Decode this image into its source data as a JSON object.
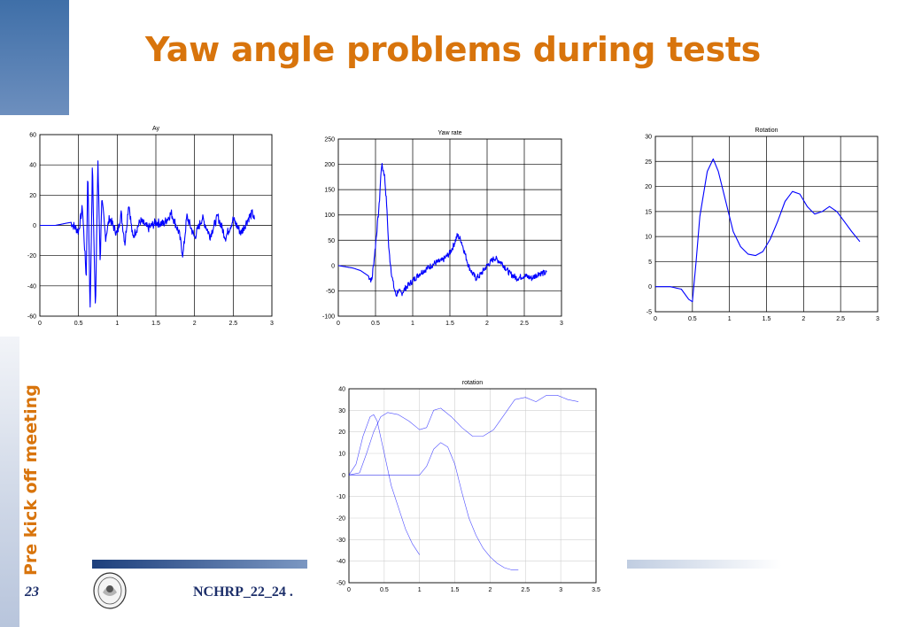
{
  "slide": {
    "title": "Yaw angle problems during tests",
    "side_text": "Pre kick off meeting",
    "page_number": "23",
    "footer_text": "NCHRP_22_24 ."
  },
  "colors": {
    "accent": "#d8740c",
    "navy": "#1d2f6a",
    "series": "#0000ff"
  },
  "icons": {
    "seal": "university-seal-icon"
  },
  "chart_data": [
    {
      "id": "ay",
      "type": "line",
      "title": "Ay",
      "xlabel": "",
      "ylabel": "",
      "xlim": [
        0,
        3
      ],
      "ylim": [
        -60,
        60
      ],
      "xticks": [
        0,
        0.5,
        1,
        1.5,
        2,
        2.5,
        3
      ],
      "yticks": [
        -60,
        -40,
        -20,
        0,
        20,
        40,
        60
      ],
      "xtick_labels": [
        "0",
        "0.5",
        "1",
        "1.5",
        "2",
        "2.5",
        "3"
      ],
      "ytick_labels": [
        "-60",
        "-40",
        "-20",
        "0",
        "20",
        "40",
        "60"
      ],
      "grid": true,
      "series": [
        {
          "x": [
            0,
            0.2,
            0.3,
            0.4,
            0.5,
            0.55,
            0.6,
            0.62,
            0.65,
            0.68,
            0.7,
            0.72,
            0.75,
            0.78,
            0.8,
            0.85,
            0.9,
            1.0,
            1.05,
            1.1,
            1.15,
            1.2,
            1.3,
            1.4,
            1.5,
            1.6,
            1.7,
            1.8,
            1.85,
            1.9,
            2.0,
            2.1,
            2.2,
            2.3,
            2.4,
            2.5,
            2.6,
            2.7,
            2.75,
            2.78
          ],
          "y": [
            0,
            0,
            1,
            2,
            -4,
            12,
            -35,
            38,
            -58,
            42,
            -12,
            -57,
            44,
            -25,
            18,
            -8,
            5,
            -6,
            8,
            -12,
            15,
            -8,
            3,
            -2,
            2,
            1,
            8,
            -5,
            -20,
            6,
            -8,
            5,
            -7,
            6,
            -8,
            4,
            -5,
            5,
            8,
            2
          ]
        }
      ]
    },
    {
      "id": "yaw-rate",
      "type": "line",
      "title": "Yaw rate",
      "xlabel": "",
      "ylabel": "",
      "xlim": [
        0,
        3
      ],
      "ylim": [
        -100,
        250
      ],
      "xticks": [
        0,
        0.5,
        1,
        1.5,
        2,
        2.5,
        3
      ],
      "yticks": [
        -100,
        -50,
        0,
        50,
        100,
        150,
        200,
        250
      ],
      "xtick_labels": [
        "0",
        "0.5",
        "1",
        "1.5",
        "2",
        "2.5",
        "3"
      ],
      "ytick_labels": [
        "-100",
        "-50",
        "0",
        "50",
        "100",
        "150",
        "200",
        "250"
      ],
      "grid": true,
      "series": [
        {
          "x": [
            0,
            0.2,
            0.3,
            0.4,
            0.45,
            0.5,
            0.55,
            0.58,
            0.62,
            0.65,
            0.68,
            0.72,
            0.75,
            0.78,
            0.8,
            0.85,
            0.9,
            1.0,
            1.1,
            1.2,
            1.3,
            1.4,
            1.5,
            1.55,
            1.6,
            1.65,
            1.7,
            1.75,
            1.8,
            1.85,
            1.9,
            2.0,
            2.1,
            2.2,
            2.3,
            2.4,
            2.5,
            2.6,
            2.7,
            2.8
          ],
          "y": [
            0,
            -5,
            -10,
            -20,
            -30,
            40,
            120,
            200,
            180,
            120,
            30,
            -20,
            -45,
            -60,
            -50,
            -55,
            -45,
            -30,
            -15,
            -5,
            5,
            10,
            25,
            40,
            60,
            50,
            25,
            0,
            -15,
            -25,
            -20,
            0,
            15,
            5,
            -15,
            -25,
            -20,
            -25,
            -15,
            -15
          ]
        }
      ]
    },
    {
      "id": "rotation-upper",
      "type": "line",
      "title": "Rotation",
      "xlabel": "",
      "ylabel": "",
      "xlim": [
        0,
        3
      ],
      "ylim": [
        -5,
        30
      ],
      "xticks": [
        0,
        0.5,
        1,
        1.5,
        2,
        2.5,
        3
      ],
      "yticks": [
        -5,
        0,
        5,
        10,
        15,
        20,
        25,
        30
      ],
      "xtick_labels": [
        "0",
        "0.5",
        "1",
        "1.5",
        "2",
        "2.5",
        "3"
      ],
      "ytick_labels": [
        "-5",
        "0",
        "5",
        "10",
        "15",
        "20",
        "25",
        "30"
      ],
      "grid": true,
      "series": [
        {
          "x": [
            0,
            0.2,
            0.35,
            0.45,
            0.5,
            0.55,
            0.6,
            0.7,
            0.78,
            0.85,
            0.95,
            1.05,
            1.15,
            1.25,
            1.35,
            1.45,
            1.55,
            1.65,
            1.75,
            1.85,
            1.95,
            2.05,
            2.15,
            2.25,
            2.35,
            2.45,
            2.55,
            2.65,
            2.76
          ],
          "y": [
            0,
            0,
            -0.5,
            -2.5,
            -3,
            5,
            14,
            23,
            25.5,
            23,
            17,
            11,
            8,
            6.5,
            6.2,
            7,
            9.5,
            13,
            17,
            19,
            18.5,
            16,
            14.5,
            15,
            16,
            15,
            13,
            11,
            9
          ]
        }
      ]
    },
    {
      "id": "rotation-lower",
      "type": "line",
      "title": "rotation",
      "xlabel": "",
      "ylabel": "",
      "xlim": [
        0,
        3.5
      ],
      "ylim": [
        -50,
        40
      ],
      "xticks": [
        0,
        0.5,
        1,
        1.5,
        2,
        2.5,
        3,
        3.5
      ],
      "yticks": [
        -50,
        -40,
        -30,
        -20,
        -10,
        0,
        10,
        20,
        30,
        40
      ],
      "xtick_labels": [
        "0",
        "0.5",
        "1",
        "1.5",
        "2",
        "2.5",
        "3",
        "3.5"
      ],
      "ytick_labels": [
        "-50",
        "-40",
        "-30",
        "-20",
        "-10",
        "0",
        "10",
        "20",
        "30",
        "40"
      ],
      "grid": true,
      "series": [
        {
          "x": [
            0,
            0.1,
            0.2,
            0.3,
            0.35,
            0.4,
            0.5,
            0.6,
            0.7,
            0.8,
            0.9,
            1.0
          ],
          "y": [
            0,
            5,
            18,
            27,
            28,
            25,
            10,
            -5,
            -15,
            -25,
            -32,
            -37
          ]
        },
        {
          "x": [
            0,
            0.15,
            0.25,
            0.35,
            0.45,
            0.55,
            0.7,
            0.85,
            1.0,
            1.1,
            1.2,
            1.3,
            1.45,
            1.6,
            1.75,
            1.9,
            2.05,
            2.2,
            2.35,
            2.5,
            2.65,
            2.8,
            2.95,
            3.1,
            3.25
          ],
          "y": [
            0,
            1,
            10,
            20,
            27,
            29,
            28,
            25,
            21,
            22,
            30,
            31,
            27,
            22,
            18,
            18,
            21,
            28,
            35,
            36,
            34,
            37,
            37,
            35,
            34
          ]
        },
        {
          "x": [
            0,
            0.3,
            0.6,
            0.9,
            1.0,
            1.1,
            1.2,
            1.3,
            1.4,
            1.5,
            1.6,
            1.7,
            1.8,
            1.9,
            2.0,
            2.1,
            2.2,
            2.3,
            2.4
          ],
          "y": [
            0,
            0,
            0,
            0,
            0,
            4,
            12,
            15,
            13,
            5,
            -8,
            -20,
            -28,
            -34,
            -38,
            -41,
            -43,
            -44,
            -44
          ]
        }
      ]
    }
  ]
}
